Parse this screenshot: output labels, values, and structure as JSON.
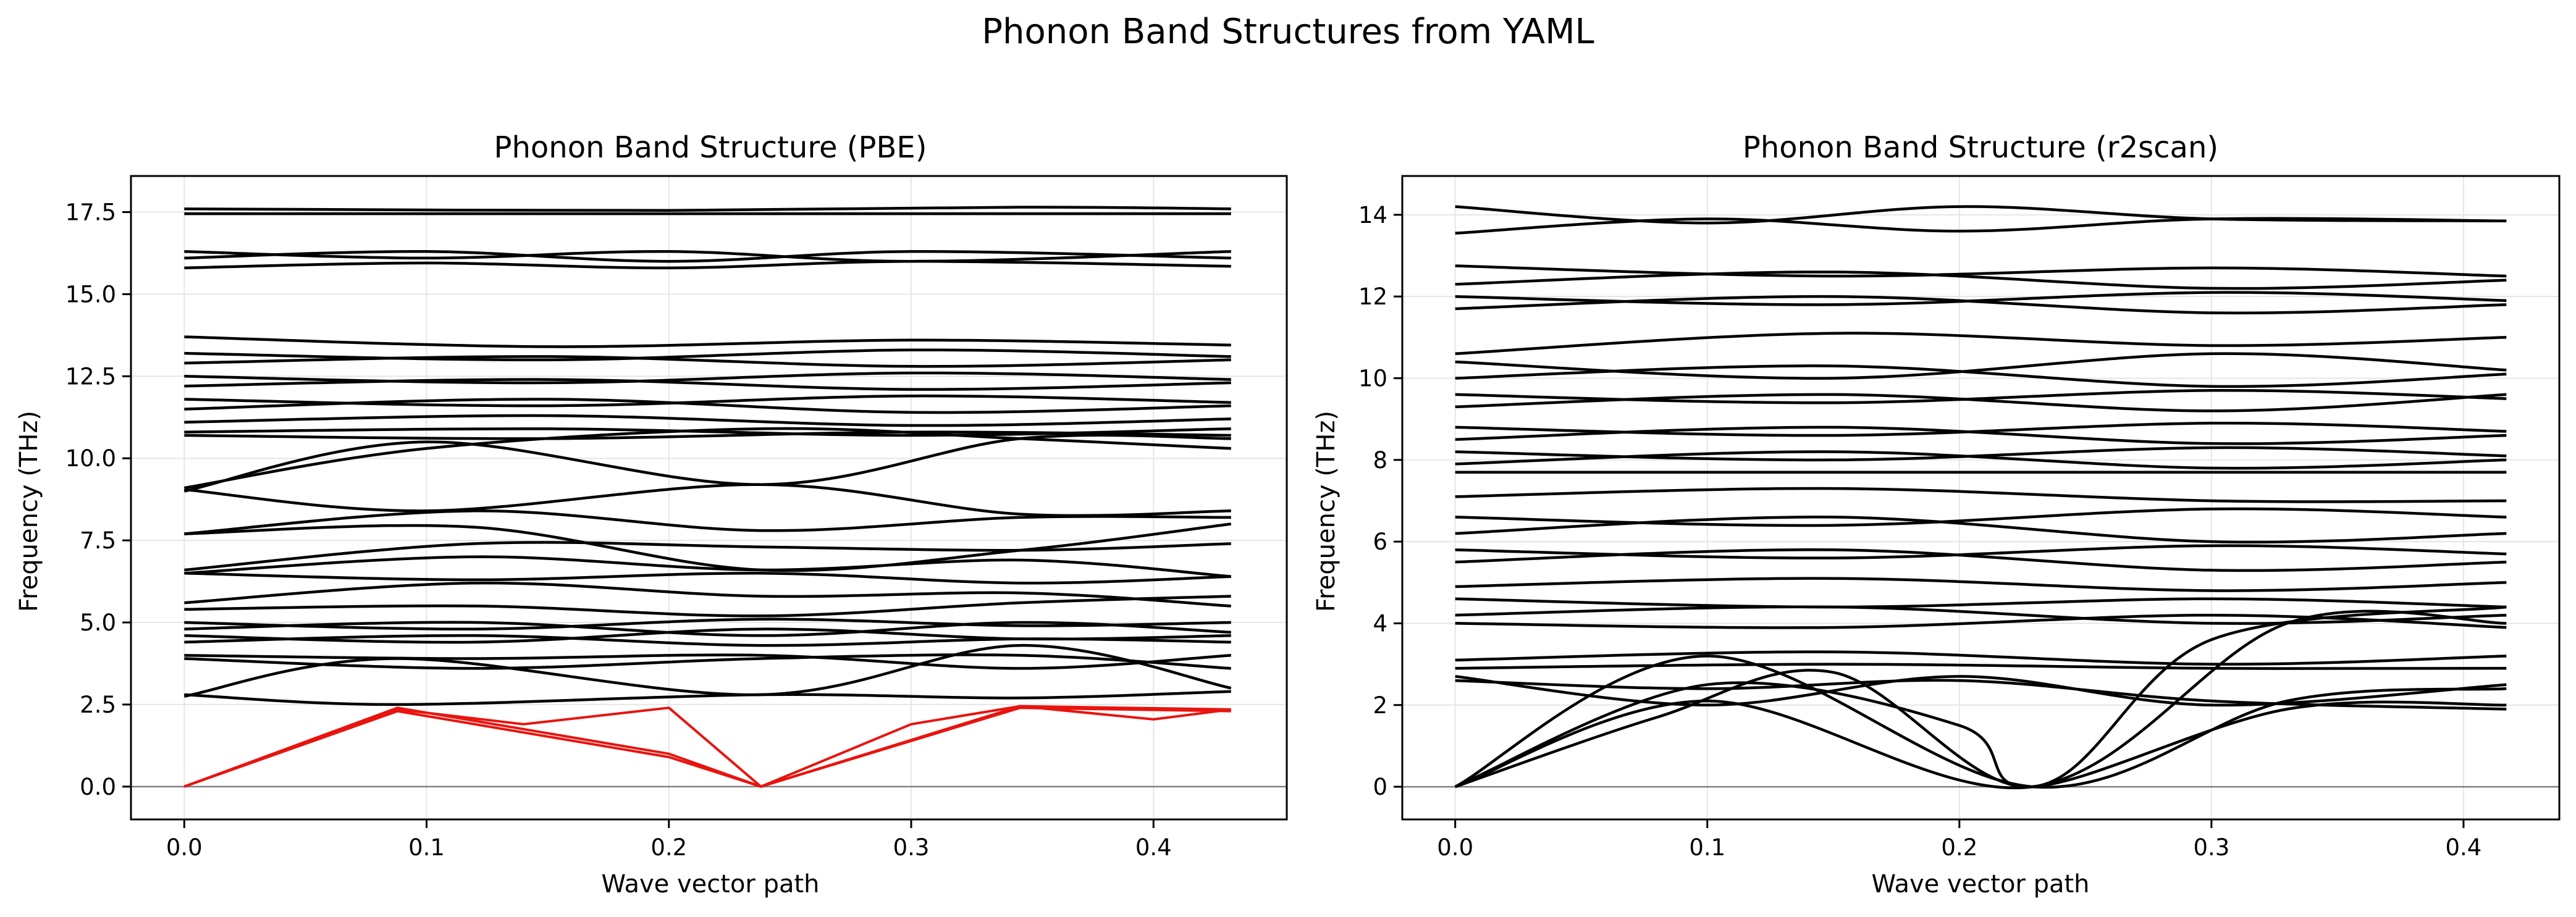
{
  "figure": {
    "title": "Phonon Band Structures from YAML"
  },
  "colors": {
    "band": "#000000",
    "acoustic": "#e8140f",
    "grid": "#e6e6e6",
    "zero_line": "#808080"
  },
  "chart_data": [
    {
      "type": "line",
      "title": "Phonon Band Structure (PBE)",
      "xlabel": "Wave vector path",
      "ylabel": "Frequency (THz)",
      "xlim": [
        -0.022,
        0.455
      ],
      "ylim": [
        -1.0,
        18.6
      ],
      "xticks": [
        0.0,
        0.1,
        0.2,
        0.3,
        0.4
      ],
      "xtick_labels": [
        "0.0",
        "0.1",
        "0.2",
        "0.3",
        "0.4"
      ],
      "yticks": [
        0.0,
        2.5,
        5.0,
        7.5,
        10.0,
        12.5,
        15.0,
        17.5
      ],
      "ytick_labels": [
        "0.0",
        "2.5",
        "5.0",
        "7.5",
        "10.0",
        "12.5",
        "15.0",
        "17.5"
      ],
      "grid": true,
      "legend": "none",
      "acoustic_series": [
        {
          "x": [
            0.0,
            0.088,
            0.14,
            0.2,
            0.238,
            0.3,
            0.345,
            0.4,
            0.432
          ],
          "y": [
            0.0,
            2.35,
            1.9,
            2.4,
            0.0,
            1.9,
            2.45,
            2.05,
            2.35
          ]
        },
        {
          "x": [
            0.0,
            0.088,
            0.2,
            0.238,
            0.345,
            0.432
          ],
          "y": [
            0.0,
            2.4,
            1.0,
            0.0,
            2.45,
            2.35
          ]
        },
        {
          "x": [
            0.0,
            0.088,
            0.2,
            0.238,
            0.345,
            0.432
          ],
          "y": [
            0.0,
            2.3,
            0.9,
            0.0,
            2.4,
            2.3
          ]
        }
      ],
      "optical_bands": [
        {
          "x": [
            0.0,
            0.432
          ],
          "y": [
            17.45,
            17.45
          ]
        },
        {
          "x": [
            0.0,
            0.2,
            0.345,
            0.432
          ],
          "y": [
            17.6,
            17.55,
            17.65,
            17.6
          ]
        },
        {
          "x": [
            0.0,
            0.1,
            0.2,
            0.3,
            0.432
          ],
          "y": [
            16.3,
            16.1,
            16.3,
            16.0,
            16.3
          ]
        },
        {
          "x": [
            0.0,
            0.1,
            0.2,
            0.3,
            0.432
          ],
          "y": [
            16.1,
            16.3,
            16.0,
            16.3,
            16.1
          ]
        },
        {
          "x": [
            0.0,
            0.1,
            0.2,
            0.3,
            0.432
          ],
          "y": [
            15.8,
            15.95,
            15.8,
            16.0,
            15.85
          ]
        },
        {
          "x": [
            0.0,
            0.15,
            0.3,
            0.432
          ],
          "y": [
            13.7,
            13.4,
            13.6,
            13.45
          ]
        },
        {
          "x": [
            0.0,
            0.15,
            0.3,
            0.432
          ],
          "y": [
            13.2,
            13.0,
            13.3,
            13.1
          ]
        },
        {
          "x": [
            0.0,
            0.15,
            0.3,
            0.432
          ],
          "y": [
            12.9,
            13.1,
            12.8,
            13.0
          ]
        },
        {
          "x": [
            0.0,
            0.15,
            0.3,
            0.432
          ],
          "y": [
            12.5,
            12.3,
            12.6,
            12.4
          ]
        },
        {
          "x": [
            0.0,
            0.15,
            0.3,
            0.432
          ],
          "y": [
            12.2,
            12.4,
            12.1,
            12.3
          ]
        },
        {
          "x": [
            0.0,
            0.15,
            0.3,
            0.432
          ],
          "y": [
            11.8,
            11.6,
            11.9,
            11.7
          ]
        },
        {
          "x": [
            0.0,
            0.15,
            0.3,
            0.432
          ],
          "y": [
            11.5,
            11.8,
            11.4,
            11.6
          ]
        },
        {
          "x": [
            0.0,
            0.15,
            0.3,
            0.432
          ],
          "y": [
            11.1,
            11.3,
            11.0,
            11.2
          ]
        },
        {
          "x": [
            0.0,
            0.15,
            0.3,
            0.432
          ],
          "y": [
            10.8,
            10.9,
            10.7,
            10.9
          ]
        },
        {
          "x": [
            0.0,
            0.15,
            0.3,
            0.432
          ],
          "y": [
            10.7,
            10.6,
            10.8,
            10.7
          ]
        },
        {
          "x": [
            0.0,
            0.1,
            0.238,
            0.345,
            0.432
          ],
          "y": [
            9.1,
            10.3,
            10.9,
            10.6,
            10.3
          ]
        },
        {
          "x": [
            0.0,
            0.1,
            0.238,
            0.345,
            0.432
          ],
          "y": [
            9.0,
            10.5,
            9.2,
            10.6,
            10.6
          ]
        },
        {
          "x": [
            0.0,
            0.1,
            0.238,
            0.345,
            0.432
          ],
          "y": [
            9.05,
            8.4,
            9.2,
            8.3,
            8.4
          ]
        },
        {
          "x": [
            0.0,
            0.12,
            0.238,
            0.345,
            0.432
          ],
          "y": [
            7.7,
            8.4,
            7.8,
            8.2,
            8.2
          ]
        },
        {
          "x": [
            0.0,
            0.12,
            0.238,
            0.345,
            0.432
          ],
          "y": [
            7.7,
            7.9,
            6.6,
            7.2,
            8.0
          ]
        },
        {
          "x": [
            0.0,
            0.12,
            0.238,
            0.345,
            0.432
          ],
          "y": [
            6.6,
            7.4,
            7.3,
            7.2,
            7.4
          ]
        },
        {
          "x": [
            0.0,
            0.12,
            0.238,
            0.345,
            0.432
          ],
          "y": [
            6.5,
            7.0,
            6.6,
            6.9,
            6.4
          ]
        },
        {
          "x": [
            0.0,
            0.12,
            0.238,
            0.345,
            0.432
          ],
          "y": [
            6.5,
            6.3,
            6.5,
            6.2,
            6.4
          ]
        },
        {
          "x": [
            0.0,
            0.12,
            0.238,
            0.345,
            0.432
          ],
          "y": [
            5.6,
            6.2,
            5.8,
            5.9,
            5.5
          ]
        },
        {
          "x": [
            0.0,
            0.12,
            0.238,
            0.345,
            0.432
          ],
          "y": [
            5.4,
            5.5,
            5.2,
            5.6,
            5.8
          ]
        },
        {
          "x": [
            0.0,
            0.12,
            0.238,
            0.345,
            0.432
          ],
          "y": [
            5.0,
            4.8,
            5.1,
            4.9,
            5.0
          ]
        },
        {
          "x": [
            0.0,
            0.12,
            0.238,
            0.345,
            0.432
          ],
          "y": [
            4.8,
            5.0,
            4.6,
            5.0,
            4.7
          ]
        },
        {
          "x": [
            0.0,
            0.12,
            0.238,
            0.345,
            0.432
          ],
          "y": [
            4.6,
            4.4,
            4.8,
            4.5,
            4.6
          ]
        },
        {
          "x": [
            0.0,
            0.12,
            0.238,
            0.345,
            0.432
          ],
          "y": [
            4.4,
            4.6,
            4.3,
            4.5,
            4.4
          ]
        },
        {
          "x": [
            0.0,
            0.12,
            0.238,
            0.345,
            0.432
          ],
          "y": [
            4.0,
            3.9,
            4.0,
            3.6,
            4.0
          ]
        },
        {
          "x": [
            0.0,
            0.12,
            0.238,
            0.345,
            0.432
          ],
          "y": [
            3.9,
            3.6,
            3.9,
            4.0,
            3.6
          ]
        },
        {
          "x": [
            0.0,
            0.088,
            0.238,
            0.345,
            0.432
          ],
          "y": [
            2.8,
            2.5,
            2.8,
            2.7,
            2.9
          ]
        },
        {
          "x": [
            0.0,
            0.088,
            0.238,
            0.345,
            0.432
          ],
          "y": [
            2.75,
            3.9,
            2.8,
            4.3,
            3.0
          ]
        }
      ]
    },
    {
      "type": "line",
      "title": "Phonon Band Structure (r2scan)",
      "xlabel": "Wave vector path",
      "ylabel": "Frequency (THz)",
      "xlim": [
        -0.021,
        0.438
      ],
      "ylim": [
        -0.8,
        14.95
      ],
      "xticks": [
        0.0,
        0.1,
        0.2,
        0.3,
        0.4
      ],
      "xtick_labels": [
        "0.0",
        "0.1",
        "0.2",
        "0.3",
        "0.4"
      ],
      "yticks": [
        0,
        2,
        4,
        6,
        8,
        10,
        12,
        14
      ],
      "ytick_labels": [
        "0",
        "2",
        "4",
        "6",
        "8",
        "10",
        "12",
        "14"
      ],
      "grid": true,
      "legend": "none",
      "acoustic_series": [],
      "optical_bands": [
        {
          "x": [
            0.0,
            0.1,
            0.2,
            0.3,
            0.417
          ],
          "y": [
            14.2,
            13.8,
            14.2,
            13.9,
            13.85
          ]
        },
        {
          "x": [
            0.0,
            0.1,
            0.2,
            0.3,
            0.417
          ],
          "y": [
            13.55,
            13.9,
            13.6,
            13.9,
            13.85
          ]
        },
        {
          "x": [
            0.0,
            0.15,
            0.3,
            0.417
          ],
          "y": [
            12.75,
            12.5,
            12.7,
            12.5
          ]
        },
        {
          "x": [
            0.0,
            0.15,
            0.3,
            0.417
          ],
          "y": [
            12.3,
            12.6,
            12.2,
            12.4
          ]
        },
        {
          "x": [
            0.0,
            0.15,
            0.3,
            0.417
          ],
          "y": [
            12.0,
            11.8,
            12.1,
            11.9
          ]
        },
        {
          "x": [
            0.0,
            0.15,
            0.3,
            0.417
          ],
          "y": [
            11.7,
            12.0,
            11.6,
            11.8
          ]
        },
        {
          "x": [
            0.0,
            0.15,
            0.3,
            0.417
          ],
          "y": [
            10.6,
            11.1,
            10.8,
            11.0
          ]
        },
        {
          "x": [
            0.0,
            0.15,
            0.3,
            0.417
          ],
          "y": [
            10.4,
            10.0,
            10.6,
            10.2
          ]
        },
        {
          "x": [
            0.0,
            0.15,
            0.3,
            0.417
          ],
          "y": [
            10.0,
            10.3,
            9.8,
            10.1
          ]
        },
        {
          "x": [
            0.0,
            0.15,
            0.3,
            0.417
          ],
          "y": [
            9.6,
            9.4,
            9.7,
            9.5
          ]
        },
        {
          "x": [
            0.0,
            0.15,
            0.3,
            0.417
          ],
          "y": [
            9.3,
            9.6,
            9.2,
            9.6
          ]
        },
        {
          "x": [
            0.0,
            0.15,
            0.3,
            0.417
          ],
          "y": [
            8.8,
            8.6,
            8.9,
            8.7
          ]
        },
        {
          "x": [
            0.0,
            0.15,
            0.3,
            0.417
          ],
          "y": [
            8.5,
            8.8,
            8.4,
            8.6
          ]
        },
        {
          "x": [
            0.0,
            0.15,
            0.3,
            0.417
          ],
          "y": [
            8.2,
            8.0,
            8.3,
            8.1
          ]
        },
        {
          "x": [
            0.0,
            0.15,
            0.3,
            0.417
          ],
          "y": [
            7.9,
            8.2,
            7.8,
            8.0
          ]
        },
        {
          "x": [
            0.0,
            0.15,
            0.3,
            0.417
          ],
          "y": [
            7.7,
            7.7,
            7.7,
            7.7
          ]
        },
        {
          "x": [
            0.0,
            0.15,
            0.3,
            0.417
          ],
          "y": [
            7.1,
            7.3,
            7.0,
            7.0
          ]
        },
        {
          "x": [
            0.0,
            0.15,
            0.3,
            0.417
          ],
          "y": [
            6.6,
            6.4,
            6.8,
            6.6
          ]
        },
        {
          "x": [
            0.0,
            0.15,
            0.3,
            0.417
          ],
          "y": [
            6.2,
            6.6,
            6.0,
            6.2
          ]
        },
        {
          "x": [
            0.0,
            0.15,
            0.3,
            0.417
          ],
          "y": [
            5.8,
            5.6,
            5.9,
            5.7
          ]
        },
        {
          "x": [
            0.0,
            0.15,
            0.3,
            0.417
          ],
          "y": [
            5.5,
            5.8,
            5.3,
            5.5
          ]
        },
        {
          "x": [
            0.0,
            0.15,
            0.3,
            0.417
          ],
          "y": [
            4.9,
            5.1,
            4.8,
            5.0
          ]
        },
        {
          "x": [
            0.0,
            0.15,
            0.3,
            0.417
          ],
          "y": [
            4.6,
            4.4,
            4.6,
            4.4
          ]
        },
        {
          "x": [
            0.0,
            0.15,
            0.3,
            0.417
          ],
          "y": [
            4.2,
            4.4,
            4.0,
            4.2
          ]
        },
        {
          "x": [
            0.0,
            0.15,
            0.3,
            0.417
          ],
          "y": [
            4.0,
            3.9,
            4.2,
            3.9
          ]
        },
        {
          "x": [
            0.0,
            0.15,
            0.3,
            0.417
          ],
          "y": [
            3.1,
            3.3,
            3.0,
            3.2
          ]
        },
        {
          "x": [
            0.0,
            0.15,
            0.3,
            0.417
          ],
          "y": [
            2.9,
            3.0,
            2.9,
            2.9
          ]
        },
        {
          "x": [
            0.0,
            0.1,
            0.2,
            0.3,
            0.417
          ],
          "y": [
            2.7,
            2.0,
            2.7,
            2.0,
            2.5
          ]
        },
        {
          "x": [
            0.0,
            0.1,
            0.2,
            0.3,
            0.417
          ],
          "y": [
            2.6,
            2.4,
            2.6,
            2.1,
            1.9
          ]
        },
        {
          "x": [
            0.0,
            0.1,
            0.2,
            0.229,
            0.33,
            0.417
          ],
          "y": [
            0.0,
            2.5,
            1.5,
            0.0,
            1.9,
            2.0
          ]
        },
        {
          "x": [
            0.0,
            0.1,
            0.229,
            0.33,
            0.417
          ],
          "y": [
            0.0,
            2.1,
            0.0,
            4.0,
            4.0
          ]
        },
        {
          "x": [
            0.0,
            0.1,
            0.229,
            0.33,
            0.417
          ],
          "y": [
            0.0,
            3.2,
            0.0,
            2.1,
            2.4
          ]
        },
        {
          "x": [
            0.0,
            0.08,
            0.15,
            0.229,
            0.3,
            0.417
          ],
          "y": [
            0.0,
            1.7,
            2.8,
            0.0,
            3.6,
            4.4
          ]
        }
      ]
    }
  ]
}
